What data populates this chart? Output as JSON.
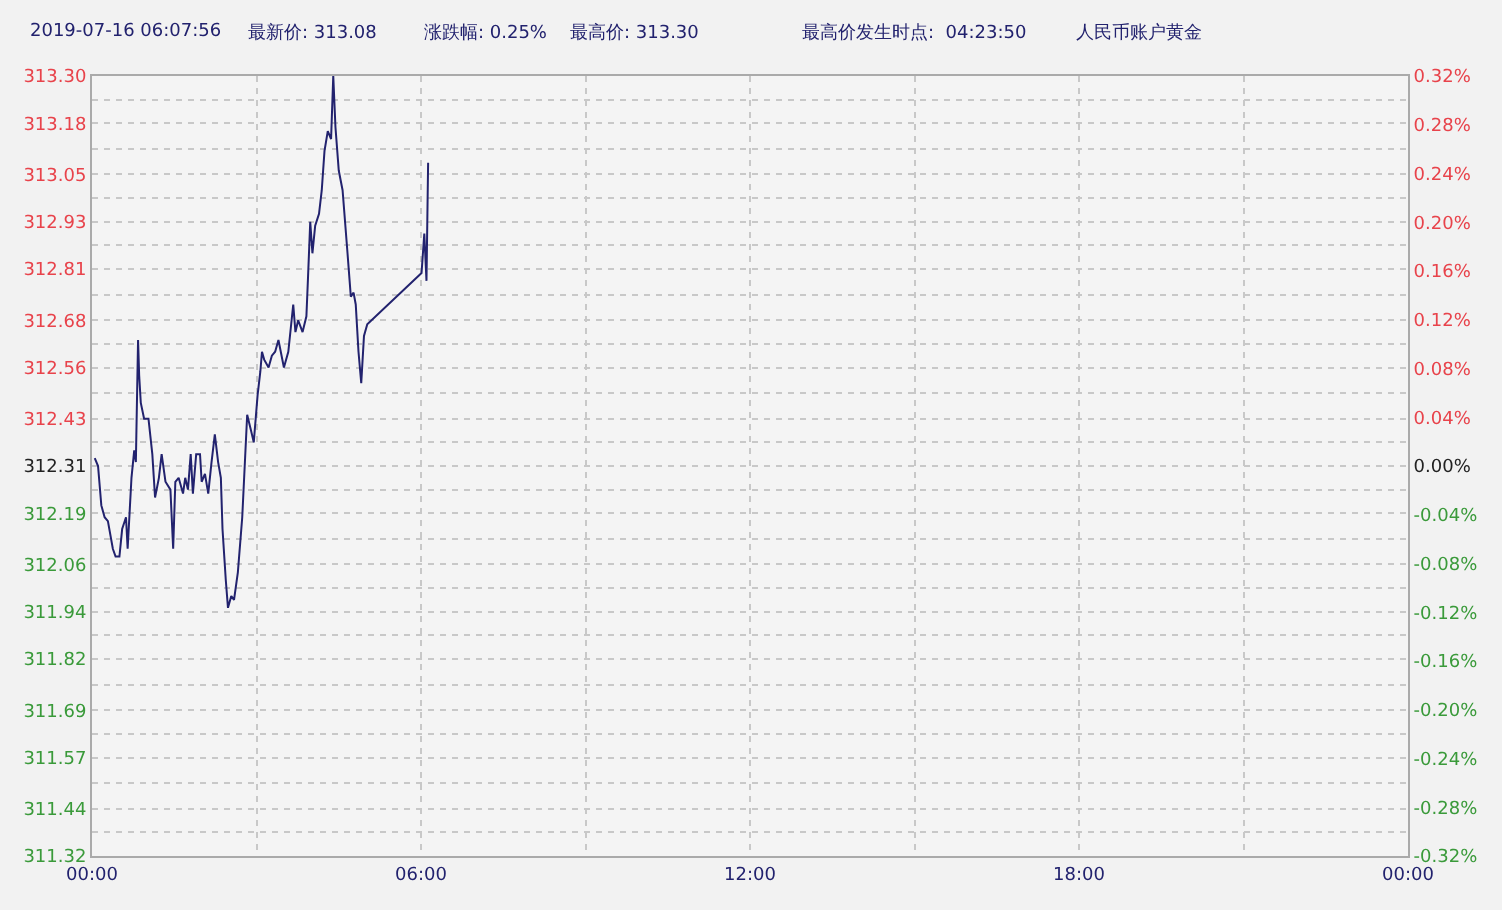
{
  "chart_data": {
    "type": "line",
    "annotations": [
      "2019-07-16 06:07:56",
      "最新价: 313.08",
      "涨跌幅: 0.25%",
      "最高价: 313.30",
      "最高价发生时点:  04:23:50",
      "人民币账户黄金"
    ],
    "x": [
      0.05,
      0.11,
      0.17,
      0.23,
      0.29,
      0.38,
      0.43,
      0.5,
      0.55,
      0.62,
      0.65,
      0.72,
      0.77,
      0.8,
      0.84,
      0.86,
      0.89,
      0.95,
      1.03,
      1.1,
      1.15,
      1.22,
      1.27,
      1.34,
      1.43,
      1.48,
      1.52,
      1.58,
      1.66,
      1.7,
      1.75,
      1.8,
      1.84,
      1.9,
      1.97,
      2.0,
      2.06,
      2.12,
      2.18,
      2.24,
      2.3,
      2.35,
      2.38,
      2.44,
      2.48,
      2.54,
      2.59,
      2.62,
      2.66,
      2.74,
      2.83,
      2.9,
      2.95,
      3.02,
      3.07,
      3.1,
      3.14,
      3.22,
      3.28,
      3.34,
      3.4,
      3.5,
      3.58,
      3.67,
      3.71,
      3.76,
      3.84,
      3.91,
      3.94,
      3.98,
      4.02,
      4.07,
      4.14,
      4.19,
      4.24,
      4.3,
      4.36,
      4.4,
      4.44,
      4.5,
      4.57,
      4.66,
      4.72,
      4.77,
      4.81,
      4.86,
      4.91,
      4.96,
      5.02,
      6.01,
      6.06,
      6.1,
      6.13
    ],
    "series": [
      {
        "color": "#22226e",
        "values": [
          312.33,
          312.31,
          312.21,
          312.18,
          312.17,
          312.1,
          312.08,
          312.08,
          312.15,
          312.18,
          312.1,
          312.28,
          312.35,
          312.32,
          312.63,
          312.54,
          312.47,
          312.43,
          312.43,
          312.34,
          312.23,
          312.28,
          312.34,
          312.27,
          312.25,
          312.1,
          312.27,
          312.28,
          312.24,
          312.28,
          312.25,
          312.34,
          312.24,
          312.34,
          312.34,
          312.27,
          312.29,
          312.24,
          312.32,
          312.39,
          312.32,
          312.28,
          312.15,
          312.02,
          311.95,
          311.98,
          311.97,
          312.0,
          312.04,
          312.18,
          312.44,
          312.4,
          312.37,
          312.49,
          312.55,
          312.6,
          312.58,
          312.56,
          312.59,
          312.6,
          312.63,
          312.56,
          312.6,
          312.72,
          312.65,
          312.68,
          312.65,
          312.69,
          312.79,
          312.93,
          312.85,
          312.92,
          312.95,
          313.01,
          313.11,
          313.16,
          313.14,
          313.3,
          313.17,
          313.06,
          313.01,
          312.85,
          312.74,
          312.75,
          312.72,
          312.6,
          312.52,
          312.64,
          312.67,
          312.8,
          312.9,
          312.78,
          313.08
        ]
      }
    ],
    "xlim": [
      0,
      24
    ],
    "xticks": [
      {
        "value": 0,
        "label": "00:00"
      },
      {
        "value": 3,
        "label": null
      },
      {
        "value": 6,
        "label": "06:00"
      },
      {
        "value": 9,
        "label": null
      },
      {
        "value": 12,
        "label": "12:00"
      },
      {
        "value": 15,
        "label": null
      },
      {
        "value": 18,
        "label": "18:00"
      },
      {
        "value": 21,
        "label": null
      },
      {
        "value": 24,
        "label": "00:00"
      }
    ],
    "ylim": [
      311.32,
      313.3
    ],
    "yticks": [
      {
        "value": 313.3,
        "label": "313.30"
      },
      {
        "value": 313.24,
        "label": null
      },
      313.18,
      {
        "value": 313.115,
        "label": null
      },
      313.05,
      {
        "value": 312.99,
        "label": null
      },
      312.93,
      {
        "value": 312.87,
        "label": null
      },
      312.81,
      {
        "value": 312.745,
        "label": null
      },
      312.68,
      {
        "value": 312.62,
        "label": null
      },
      312.56,
      {
        "value": 312.495,
        "label": null
      },
      312.43,
      {
        "value": 312.37,
        "label": null
      },
      312.31,
      {
        "value": 312.25,
        "label": null
      },
      312.19,
      {
        "value": 312.125,
        "label": null
      },
      312.06,
      {
        "value": 312.0,
        "label": null
      },
      311.94,
      {
        "value": 311.88,
        "label": null
      },
      311.82,
      {
        "value": 311.755,
        "label": null
      },
      311.69,
      {
        "value": 311.63,
        "label": null
      },
      311.57,
      {
        "value": 311.505,
        "label": null
      },
      311.44,
      {
        "value": 311.38,
        "label": null
      },
      311.32
    ],
    "y2lim": [
      -0.32,
      0.32
    ],
    "y2ticks": [
      {
        "value": 0.32,
        "label": "0.32%"
      },
      {
        "value": 0.28,
        "label": "0.28%"
      },
      {
        "value": 0.24,
        "label": "0.24%"
      },
      {
        "value": 0.2,
        "label": "0.20%"
      },
      {
        "value": 0.16,
        "label": "0.16%"
      },
      {
        "value": 0.12,
        "label": "0.12%"
      },
      {
        "value": 0.08,
        "label": "0.08%"
      },
      {
        "value": 0.04,
        "label": "0.04%"
      },
      {
        "value": 0,
        "label": "0.00%"
      },
      {
        "value": -0.04,
        "label": "-0.04%"
      },
      {
        "value": -0.08,
        "label": "-0.08%"
      },
      {
        "value": -0.12,
        "label": "-0.12%"
      },
      {
        "value": -0.16,
        "label": "-0.16%"
      },
      {
        "value": -0.2,
        "label": "-0.20%"
      },
      {
        "value": -0.24,
        "label": "-0.24%"
      },
      {
        "value": -0.28,
        "label": "-0.28%"
      },
      {
        "value": -0.32,
        "label": "-0.32%"
      }
    ],
    "grid": true,
    "marker": "none",
    "line_style": "solid"
  }
}
